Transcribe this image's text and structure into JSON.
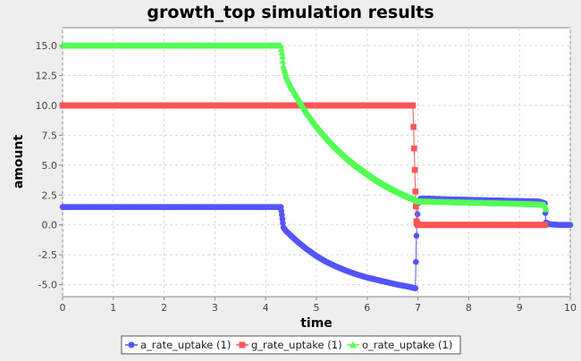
{
  "chart_data": {
    "type": "line",
    "title": "growth_top simulation results",
    "xlabel": "time",
    "ylabel": "amount",
    "xlim": [
      0,
      10
    ],
    "ylim": [
      -6,
      16.5
    ],
    "x_ticks": [
      "0",
      "1",
      "2",
      "3",
      "4",
      "5",
      "6",
      "7",
      "8",
      "9",
      "10"
    ],
    "y_ticks": [
      "-5.0",
      "-2.5",
      "0.0",
      "2.5",
      "5.0",
      "7.5",
      "10.0",
      "12.5",
      "15.0"
    ],
    "grid": true,
    "legend_position": "bottom",
    "series": [
      {
        "name": "a_rate_uptake (1)",
        "color": "#5555ff",
        "marker": "circle",
        "x": [
          0,
          0.5,
          1,
          1.5,
          2,
          2.5,
          3,
          3.5,
          4,
          4.3,
          4.33,
          4.35,
          4.4,
          4.5,
          4.6,
          4.8,
          5.0,
          5.2,
          5.4,
          5.6,
          5.8,
          6.0,
          6.2,
          6.4,
          6.6,
          6.8,
          6.95,
          6.97,
          7.0,
          7.05,
          7.2,
          7.5,
          8.0,
          8.5,
          9.0,
          9.4,
          9.5,
          9.52,
          9.6,
          9.8,
          10.0
        ],
        "y": [
          1.5,
          1.5,
          1.5,
          1.5,
          1.5,
          1.5,
          1.5,
          1.5,
          1.5,
          1.5,
          0.5,
          -0.2,
          -0.5,
          -0.9,
          -1.3,
          -2.0,
          -2.6,
          -3.1,
          -3.5,
          -3.85,
          -4.15,
          -4.4,
          -4.6,
          -4.8,
          -5.0,
          -5.15,
          -5.3,
          -0.9,
          1.8,
          2.2,
          2.2,
          2.15,
          2.1,
          2.05,
          2.0,
          1.95,
          1.8,
          0.2,
          0.05,
          0.0,
          0.0
        ]
      },
      {
        "name": "g_rate_uptake (1)",
        "color": "#ff5555",
        "marker": "square",
        "x": [
          0,
          0.5,
          1,
          1.5,
          2,
          2.5,
          3,
          3.5,
          4,
          4.5,
          5,
          5.5,
          6,
          6.5,
          6.9,
          6.95,
          6.97,
          7.0,
          7.5,
          8,
          8.5,
          9,
          9.5
        ],
        "y": [
          10,
          10,
          10,
          10,
          10,
          10,
          10,
          10,
          10,
          10,
          10,
          10,
          10,
          10,
          10,
          2.8,
          0.3,
          0,
          0,
          0,
          0,
          0,
          0
        ]
      },
      {
        "name": "o_rate_uptake (1)",
        "color": "#55ff55",
        "marker": "triangle",
        "x": [
          0,
          0.5,
          1,
          1.5,
          2,
          2.5,
          3,
          3.5,
          4,
          4.3,
          4.33,
          4.35,
          4.4,
          4.5,
          4.6,
          4.8,
          5.0,
          5.2,
          5.4,
          5.6,
          5.8,
          6.0,
          6.2,
          6.4,
          6.6,
          6.8,
          6.95,
          7.0,
          7.5,
          8.0,
          8.5,
          9.0,
          9.4,
          9.5,
          9.52
        ],
        "y": [
          15,
          15,
          15,
          15,
          15,
          15,
          15,
          15,
          15,
          15,
          14.1,
          13.3,
          12.5,
          11.6,
          10.9,
          9.5,
          8.3,
          7.3,
          6.4,
          5.6,
          4.9,
          4.3,
          3.7,
          3.2,
          2.75,
          2.35,
          2.1,
          1.95,
          1.9,
          1.85,
          1.8,
          1.75,
          1.7,
          1.65,
          1.3
        ]
      }
    ]
  }
}
